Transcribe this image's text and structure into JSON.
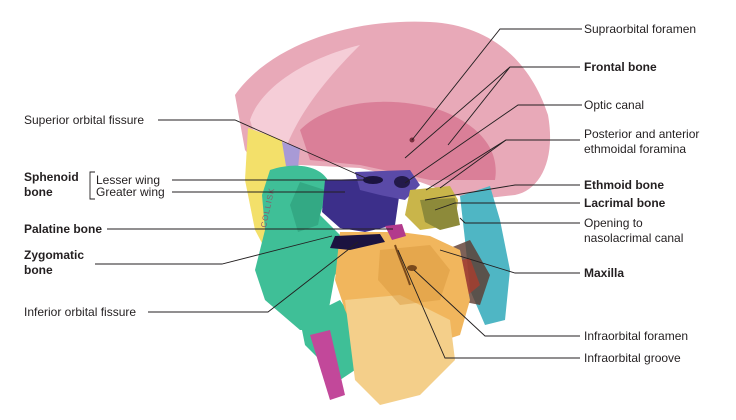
{
  "labels": {
    "supraorbital_foramen": "Supraorbital foramen",
    "frontal_bone": "Frontal bone",
    "optic_canal": "Optic canal",
    "posterior_anterior_ethmoidal_1": "Posterior and anterior",
    "posterior_anterior_ethmoidal_2": "ethmoidal foramina",
    "ethmoid_bone": "Ethmoid bone",
    "lacrimal_bone": "Lacrimal bone",
    "opening_nasolacrimal_1": "Opening to",
    "opening_nasolacrimal_2": "nasolacrimal canal",
    "maxilla": "Maxilla",
    "infraorbital_foramen": "Infraorbital foramen",
    "infraorbital_groove": "Infraorbital groove",
    "superior_orbital_fissure": "Superior orbital fissure",
    "sphenoid_1": "Sphenoid",
    "sphenoid_2": "bone",
    "lesser_wing": "Lesser wing",
    "greater_wing": "Greater wing",
    "palatine_bone": "Palatine bone",
    "zygomatic_1": "Zygomatic",
    "zygomatic_2": "bone",
    "inferior_orbital_fissure": "Inferior orbital fissure",
    "artist_signature": "COLLISK"
  },
  "colors": {
    "frontal": "#e8a9b8",
    "frontal_deep": "#d6728e",
    "sphenoid_greater": "#3c2f8a",
    "sphenoid_lesser": "#5a4aa8",
    "ethmoid": "#c9b54a",
    "lacrimal": "#8d8a3a",
    "maxilla": "#f1b65d",
    "zygomatic": "#3fbf97",
    "palatine": "#b23a8c",
    "nasal": "#4fb6c4",
    "yellow": "#f3e06a",
    "magenta": "#c2489a"
  }
}
